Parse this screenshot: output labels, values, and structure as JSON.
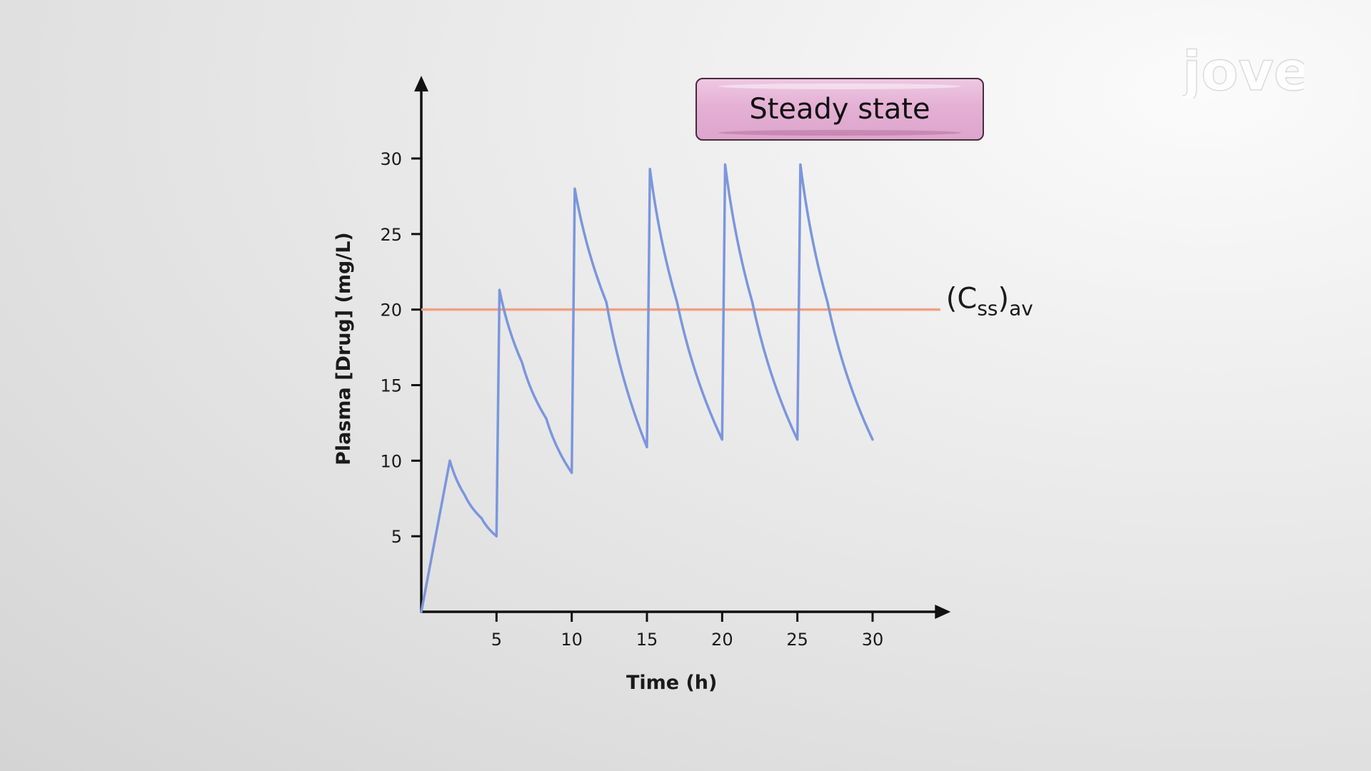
{
  "badge": {
    "label": "Steady state"
  },
  "watermark": {
    "text": "jove"
  },
  "chart_data": {
    "type": "line",
    "title": "",
    "xlabel": "Time (h)",
    "ylabel": "Plasma [Drug] (mg/L)",
    "xlim": [
      0,
      35
    ],
    "ylim": [
      0,
      35
    ],
    "xticks": [
      5,
      10,
      15,
      20,
      25,
      30
    ],
    "yticks": [
      5,
      10,
      15,
      20,
      25,
      30
    ],
    "grid": false,
    "series": [
      {
        "color": "#7b96dd",
        "x": [
          0,
          1.9,
          2.9,
          4.0,
          5.0,
          5.2,
          6.7,
          8.3,
          10.0,
          10.2,
          12.3,
          15.0,
          15.2,
          17.0,
          20.0,
          20.2,
          22.0,
          25.0,
          25.2,
          27.0,
          30.0
        ],
        "y": [
          0,
          10,
          7.7,
          6.2,
          5,
          21.3,
          16.5,
          12.8,
          9.2,
          28,
          20.5,
          10.9,
          29.3,
          20.5,
          11.4,
          29.6,
          20.5,
          11.4,
          29.6,
          20.5,
          11.4
        ]
      }
    ],
    "reference_line": {
      "y": 20,
      "x_range": [
        0,
        34.5
      ],
      "color": "#f2a07e",
      "label_main": "(C",
      "label_sub": "ss",
      "label_close": ")",
      "label_sub2": "av"
    }
  }
}
